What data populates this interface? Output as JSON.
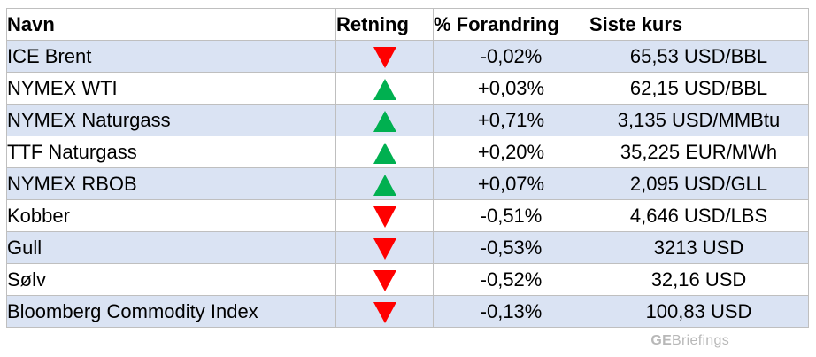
{
  "headers": {
    "name": "Navn",
    "direction": "Retning",
    "change": "% Forandring",
    "price": "Siste kurs"
  },
  "colors": {
    "up": "#00b050",
    "down": "#ff0000",
    "row_shade": "#dae3f3",
    "border": "#bfbfbf"
  },
  "rows": [
    {
      "name": "ICE Brent",
      "direction": "down",
      "change": "-0,02%",
      "price": "65,53 USD/BBL"
    },
    {
      "name": "NYMEX WTI",
      "direction": "up",
      "change": "+0,03%",
      "price": "62,15 USD/BBL"
    },
    {
      "name": "NYMEX Naturgass",
      "direction": "up",
      "change": "+0,71%",
      "price": "3,135 USD/MMBtu"
    },
    {
      "name": "TTF Naturgass",
      "direction": "up",
      "change": "+0,20%",
      "price": "35,225 EUR/MWh"
    },
    {
      "name": "NYMEX RBOB",
      "direction": "up",
      "change": "+0,07%",
      "price": "2,095 USD/GLL"
    },
    {
      "name": "Kobber",
      "direction": "down",
      "change": "-0,51%",
      "price": "4,646 USD/LBS"
    },
    {
      "name": "Gull",
      "direction": "down",
      "change": "-0,53%",
      "price": "3213 USD"
    },
    {
      "name": "Sølv",
      "direction": "down",
      "change": "-0,52%",
      "price": "32,16 USD"
    },
    {
      "name": "Bloomberg Commodity Index",
      "direction": "down",
      "change": "-0,13%",
      "price": "100,83 USD"
    }
  ],
  "watermark": {
    "bold_part": "GE",
    "rest": "Briefings"
  }
}
